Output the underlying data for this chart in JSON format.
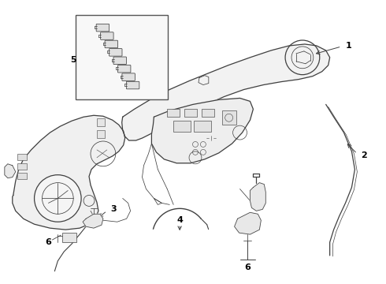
{
  "background_color": "#ffffff",
  "line_color": "#404040",
  "label_color": "#000000",
  "lw_main": 0.9,
  "lw_thin": 0.55,
  "figsize": [
    4.9,
    3.6
  ],
  "dpi": 100
}
